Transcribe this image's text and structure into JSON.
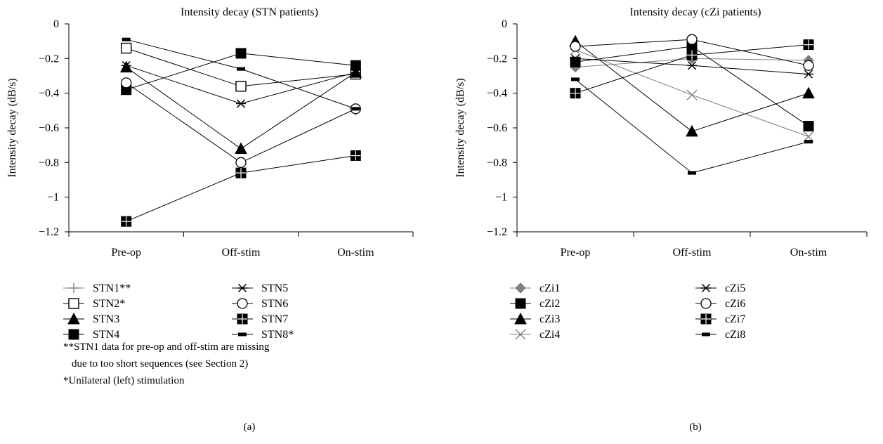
{
  "chart_data": [
    {
      "type": "line",
      "title": "Intensity decay (STN patients)",
      "xlabel": "",
      "ylabel": "Intensity decay (dB/s)",
      "categories": [
        "Pre-op",
        "Off-stim",
        "On-stim"
      ],
      "ylim": [
        -1.2,
        0
      ],
      "yticks": [
        "0",
        "−0.2",
        "−0.4",
        "−0.6",
        "−0.8",
        "−1",
        "−1.2"
      ],
      "ytick_values": [
        0,
        -0.2,
        -0.4,
        -0.6,
        -0.8,
        -1,
        -1.2
      ],
      "grid": false,
      "legend_position": "bottom",
      "series": [
        {
          "name": "STN1**",
          "marker": "plus",
          "color": "#808080",
          "values": [
            null,
            null,
            -0.5
          ]
        },
        {
          "name": "STN2*",
          "marker": "square-open",
          "color": "#000000",
          "values": [
            -0.14,
            -0.36,
            -0.29
          ]
        },
        {
          "name": "STN3",
          "marker": "triangle",
          "color": "#000000",
          "values": [
            -0.25,
            -0.72,
            -0.28
          ]
        },
        {
          "name": "STN4",
          "marker": "square",
          "color": "#000000",
          "values": [
            -0.38,
            -0.17,
            -0.24
          ]
        },
        {
          "name": "STN5",
          "marker": "star",
          "color": "#000000",
          "values": [
            -0.24,
            -0.46,
            -0.28
          ]
        },
        {
          "name": "STN6",
          "marker": "circle-open",
          "color": "#000000",
          "values": [
            -0.34,
            -0.8,
            -0.49
          ]
        },
        {
          "name": "STN7",
          "marker": "square-grid",
          "color": "#000000",
          "values": [
            -1.14,
            -0.86,
            -0.76
          ]
        },
        {
          "name": "STN8*",
          "marker": "dash",
          "color": "#000000",
          "values": [
            -0.09,
            -0.26,
            -0.49
          ]
        }
      ],
      "notes": [
        "**STN1 data for pre-op and off-stim are missing",
        "due to too short sequences (see Section 2)",
        "*Unilateral (left) stimulation"
      ],
      "panel_label": "(a)"
    },
    {
      "type": "line",
      "title": "Intensity decay (cZi patients)",
      "xlabel": "",
      "ylabel": "Intensity decay (dB/s)",
      "categories": [
        "Pre-op",
        "Off-stim",
        "On-stim"
      ],
      "ylim": [
        -1.2,
        0
      ],
      "yticks": [
        "0",
        "−0.2",
        "−0.4",
        "−0.6",
        "−0.8",
        "−1",
        "−1.2"
      ],
      "ytick_values": [
        0,
        -0.2,
        -0.4,
        -0.6,
        -0.8,
        -1,
        -1.2
      ],
      "grid": false,
      "legend_position": "bottom",
      "series": [
        {
          "name": "cZi1",
          "marker": "diamond",
          "color": "#808080",
          "values": [
            -0.25,
            -0.2,
            -0.21
          ]
        },
        {
          "name": "cZi2",
          "marker": "square",
          "color": "#000000",
          "values": [
            -0.22,
            -0.13,
            -0.59
          ]
        },
        {
          "name": "cZi3",
          "marker": "triangle",
          "color": "#000000",
          "values": [
            -0.1,
            -0.62,
            -0.4
          ]
        },
        {
          "name": "cZi4",
          "marker": "x",
          "color": "#808080",
          "values": [
            -0.15,
            -0.41,
            -0.65
          ]
        },
        {
          "name": "cZi5",
          "marker": "star",
          "color": "#000000",
          "values": [
            -0.2,
            -0.24,
            -0.29
          ]
        },
        {
          "name": "cZi6",
          "marker": "circle-open",
          "color": "#000000",
          "values": [
            -0.13,
            -0.09,
            -0.24
          ]
        },
        {
          "name": "cZi7",
          "marker": "square-grid",
          "color": "#000000",
          "values": [
            -0.4,
            -0.18,
            -0.12
          ]
        },
        {
          "name": "cZi8",
          "marker": "dash",
          "color": "#000000",
          "values": [
            -0.32,
            -0.86,
            -0.68
          ]
        }
      ],
      "notes": [],
      "panel_label": "(b)"
    }
  ]
}
